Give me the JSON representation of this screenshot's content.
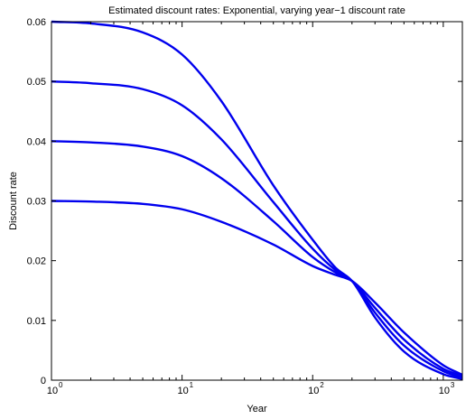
{
  "chart_data": {
    "type": "line",
    "title": "Estimated discount rates: Exponential, varying year−1 discount rate",
    "xlabel": "Year",
    "ylabel": "Discount rate",
    "xscale": "log",
    "xlim": [
      1,
      1400
    ],
    "ylim": [
      0,
      0.06
    ],
    "grid": false,
    "legend": "none",
    "line_color": "#0000ee",
    "y_ticks": [
      "0",
      "0.01",
      "0.02",
      "0.03",
      "0.04",
      "0.05",
      "0.06"
    ],
    "x_ticks": [
      {
        "base": "10",
        "exp": "0"
      },
      {
        "base": "10",
        "exp": "1"
      },
      {
        "base": "10",
        "exp": "2"
      },
      {
        "base": "10",
        "exp": "3"
      }
    ],
    "x": [
      1,
      2,
      5,
      10,
      20,
      50,
      100,
      150,
      200,
      300,
      500,
      1000,
      1400
    ],
    "series": [
      {
        "values": [
          0.06,
          0.0597,
          0.0582,
          0.0545,
          0.0467,
          0.0326,
          0.0235,
          0.0188,
          0.0166,
          0.0105,
          0.0048,
          0.001,
          0.0002
        ]
      },
      {
        "values": [
          0.05,
          0.0497,
          0.0487,
          0.046,
          0.0403,
          0.0298,
          0.022,
          0.0184,
          0.0166,
          0.0113,
          0.0058,
          0.0015,
          0.0004
        ]
      },
      {
        "values": [
          0.04,
          0.0398,
          0.0391,
          0.0375,
          0.0338,
          0.0266,
          0.0206,
          0.018,
          0.0166,
          0.0121,
          0.0068,
          0.0019,
          0.0007
        ]
      },
      {
        "values": [
          0.03,
          0.0299,
          0.0295,
          0.0286,
          0.0265,
          0.0227,
          0.0191,
          0.0176,
          0.0166,
          0.013,
          0.008,
          0.0025,
          0.0009
        ]
      }
    ]
  }
}
